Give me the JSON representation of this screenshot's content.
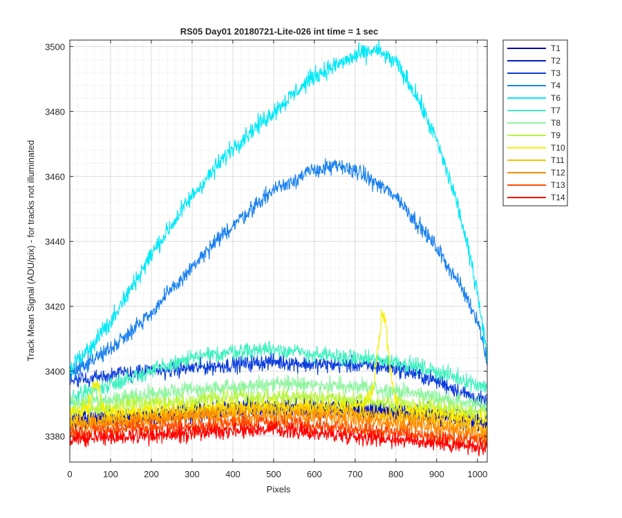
{
  "chart_data": {
    "type": "line",
    "title": "RS05 Day01 20180721-Lite-026 int time = 1 sec",
    "xlabel": "Pixels",
    "ylabel": "Track Mean Signal (ADU/pix) - for tracks not illuminated",
    "xlim": [
      0,
      1024
    ],
    "ylim": [
      3372,
      3502
    ],
    "xticks": [
      0,
      100,
      200,
      300,
      400,
      500,
      600,
      700,
      800,
      900,
      1000
    ],
    "yticks": [
      3380,
      3400,
      3420,
      3440,
      3460,
      3480,
      3500
    ],
    "x_tick_labels": [
      "0",
      "100",
      "200",
      "300",
      "400",
      "500",
      "600",
      "700",
      "800",
      "900",
      "1000"
    ],
    "y_tick_labels": [
      "3380",
      "3400",
      "3420",
      "3440",
      "3460",
      "3480",
      "3500"
    ],
    "grid": true,
    "minor_grid": true,
    "legend_position": "outside-top-right",
    "series": [
      {
        "name": "T1",
        "color": "#0000ad",
        "noise": 2.5,
        "x": [
          0,
          100,
          200,
          300,
          400,
          500,
          600,
          700,
          800,
          900,
          1024
        ],
        "y": [
          3384,
          3385,
          3386,
          3387,
          3388,
          3388,
          3388,
          3388,
          3387,
          3386,
          3384
        ]
      },
      {
        "name": "T2",
        "color": "#0016c8",
        "noise": 2.5,
        "x": [
          0,
          100,
          200,
          300,
          400,
          500,
          600,
          700,
          800,
          900,
          1024
        ],
        "y": [
          3385,
          3386,
          3387,
          3388,
          3389,
          3389,
          3389,
          3389,
          3388,
          3387,
          3385
        ]
      },
      {
        "name": "T3",
        "color": "#0a3cdc",
        "noise": 2.5,
        "x": [
          0,
          100,
          200,
          300,
          400,
          500,
          600,
          700,
          800,
          900,
          1024
        ],
        "y": [
          3397,
          3399,
          3400,
          3401,
          3402,
          3403,
          3402,
          3402,
          3401,
          3397,
          3390
        ]
      },
      {
        "name": "T4",
        "color": "#1a80f0",
        "noise": 2.5,
        "x": [
          0,
          100,
          200,
          300,
          400,
          500,
          600,
          650,
          700,
          800,
          900,
          960,
          1000,
          1024
        ],
        "y": [
          3399,
          3407,
          3418,
          3432,
          3445,
          3456,
          3462,
          3463,
          3462,
          3454,
          3438,
          3426,
          3416,
          3403
        ]
      },
      {
        "name": "T6",
        "color": "#00e8f8",
        "noise": 2.8,
        "x": [
          0,
          100,
          200,
          300,
          400,
          500,
          600,
          700,
          750,
          800,
          850,
          900,
          950,
          1000,
          1024
        ],
        "y": [
          3400,
          3415,
          3436,
          3454,
          3469,
          3480,
          3491,
          3497,
          3499,
          3495,
          3485,
          3471,
          3452,
          3425,
          3404
        ]
      },
      {
        "name": "T7",
        "color": "#3ff2c0",
        "noise": 2.5,
        "x": [
          0,
          100,
          200,
          300,
          400,
          500,
          600,
          700,
          800,
          900,
          1024
        ],
        "y": [
          3392,
          3396,
          3400,
          3404,
          3406,
          3407,
          3405,
          3404,
          3403,
          3400,
          3395
        ]
      },
      {
        "name": "T8",
        "color": "#8ff5a0",
        "noise": 2.5,
        "x": [
          0,
          100,
          200,
          300,
          400,
          500,
          600,
          700,
          800,
          900,
          1024
        ],
        "y": [
          3390,
          3391,
          3393,
          3394,
          3395,
          3396,
          3396,
          3395,
          3394,
          3392,
          3389
        ]
      },
      {
        "name": "T9",
        "color": "#b8f542",
        "noise": 2.5,
        "x": [
          0,
          100,
          200,
          300,
          400,
          500,
          600,
          700,
          800,
          900,
          1024
        ],
        "y": [
          3388,
          3389,
          3390,
          3391,
          3392,
          3392,
          3392,
          3391,
          3390,
          3389,
          3387
        ]
      },
      {
        "name": "T10",
        "color": "#f8f000",
        "noise": 2.5,
        "x": [
          0,
          30,
          45,
          55,
          62,
          70,
          80,
          95,
          200,
          400,
          600,
          700,
          730,
          745,
          755,
          765,
          770,
          775,
          785,
          795,
          805,
          820,
          900,
          1024
        ],
        "y": [
          3387,
          3387,
          3389,
          3394,
          3397,
          3394,
          3389,
          3387,
          3388,
          3389,
          3389,
          3389,
          3390,
          3396,
          3406,
          3416,
          3418,
          3414,
          3402,
          3393,
          3389,
          3388,
          3387,
          3385
        ]
      },
      {
        "name": "T11",
        "color": "#ffbe00",
        "noise": 2.5,
        "x": [
          0,
          100,
          200,
          300,
          400,
          500,
          600,
          700,
          800,
          900,
          1024
        ],
        "y": [
          3384,
          3385,
          3386,
          3387,
          3388,
          3388,
          3388,
          3387,
          3386,
          3385,
          3382
        ]
      },
      {
        "name": "T12",
        "color": "#ff8c00",
        "noise": 2.5,
        "x": [
          0,
          100,
          200,
          300,
          400,
          500,
          600,
          700,
          800,
          900,
          1024
        ],
        "y": [
          3383,
          3384,
          3385,
          3386,
          3386,
          3386,
          3386,
          3385,
          3384,
          3383,
          3380
        ]
      },
      {
        "name": "T13",
        "color": "#ff4a00",
        "noise": 2.5,
        "x": [
          0,
          100,
          200,
          300,
          400,
          500,
          600,
          700,
          800,
          900,
          1024
        ],
        "y": [
          3381,
          3382,
          3383,
          3383,
          3384,
          3384,
          3383,
          3382,
          3381,
          3380,
          3378
        ]
      },
      {
        "name": "T14",
        "color": "#ff0000",
        "noise": 2.5,
        "x": [
          0,
          100,
          200,
          300,
          400,
          500,
          600,
          700,
          800,
          900,
          1024
        ],
        "y": [
          3379,
          3380,
          3380,
          3381,
          3382,
          3382,
          3381,
          3380,
          3379,
          3378,
          3376
        ]
      }
    ]
  }
}
